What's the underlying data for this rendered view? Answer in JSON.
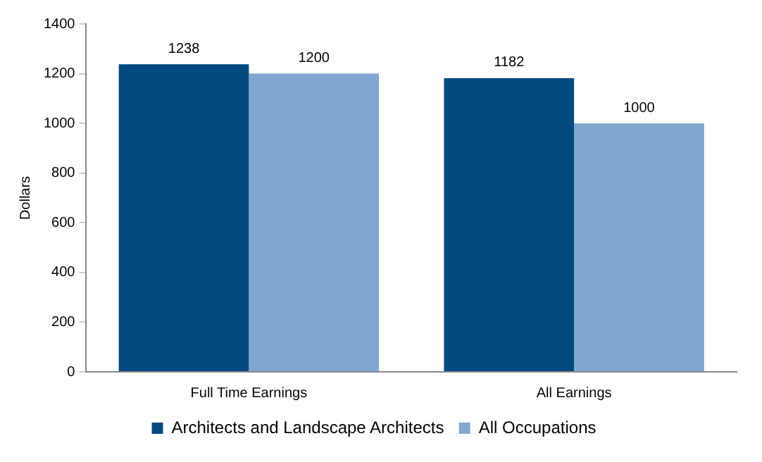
{
  "chart_data": {
    "type": "bar",
    "ylabel": "Dollars",
    "categories": [
      "Full Time Earnings",
      "All Earnings"
    ],
    "series": [
      {
        "name": "Architects and Landscape Architects",
        "color": "#004a80",
        "values": [
          1238,
          1182
        ]
      },
      {
        "name": "All Occupations",
        "color": "#7fa7cf",
        "values": [
          1200,
          1000
        ]
      }
    ],
    "ylim": [
      0,
      1400
    ],
    "yticks": [
      0,
      200,
      400,
      600,
      800,
      1000,
      1200,
      1400
    ],
    "grid": false,
    "legend": "bottom",
    "data_labels": true
  }
}
